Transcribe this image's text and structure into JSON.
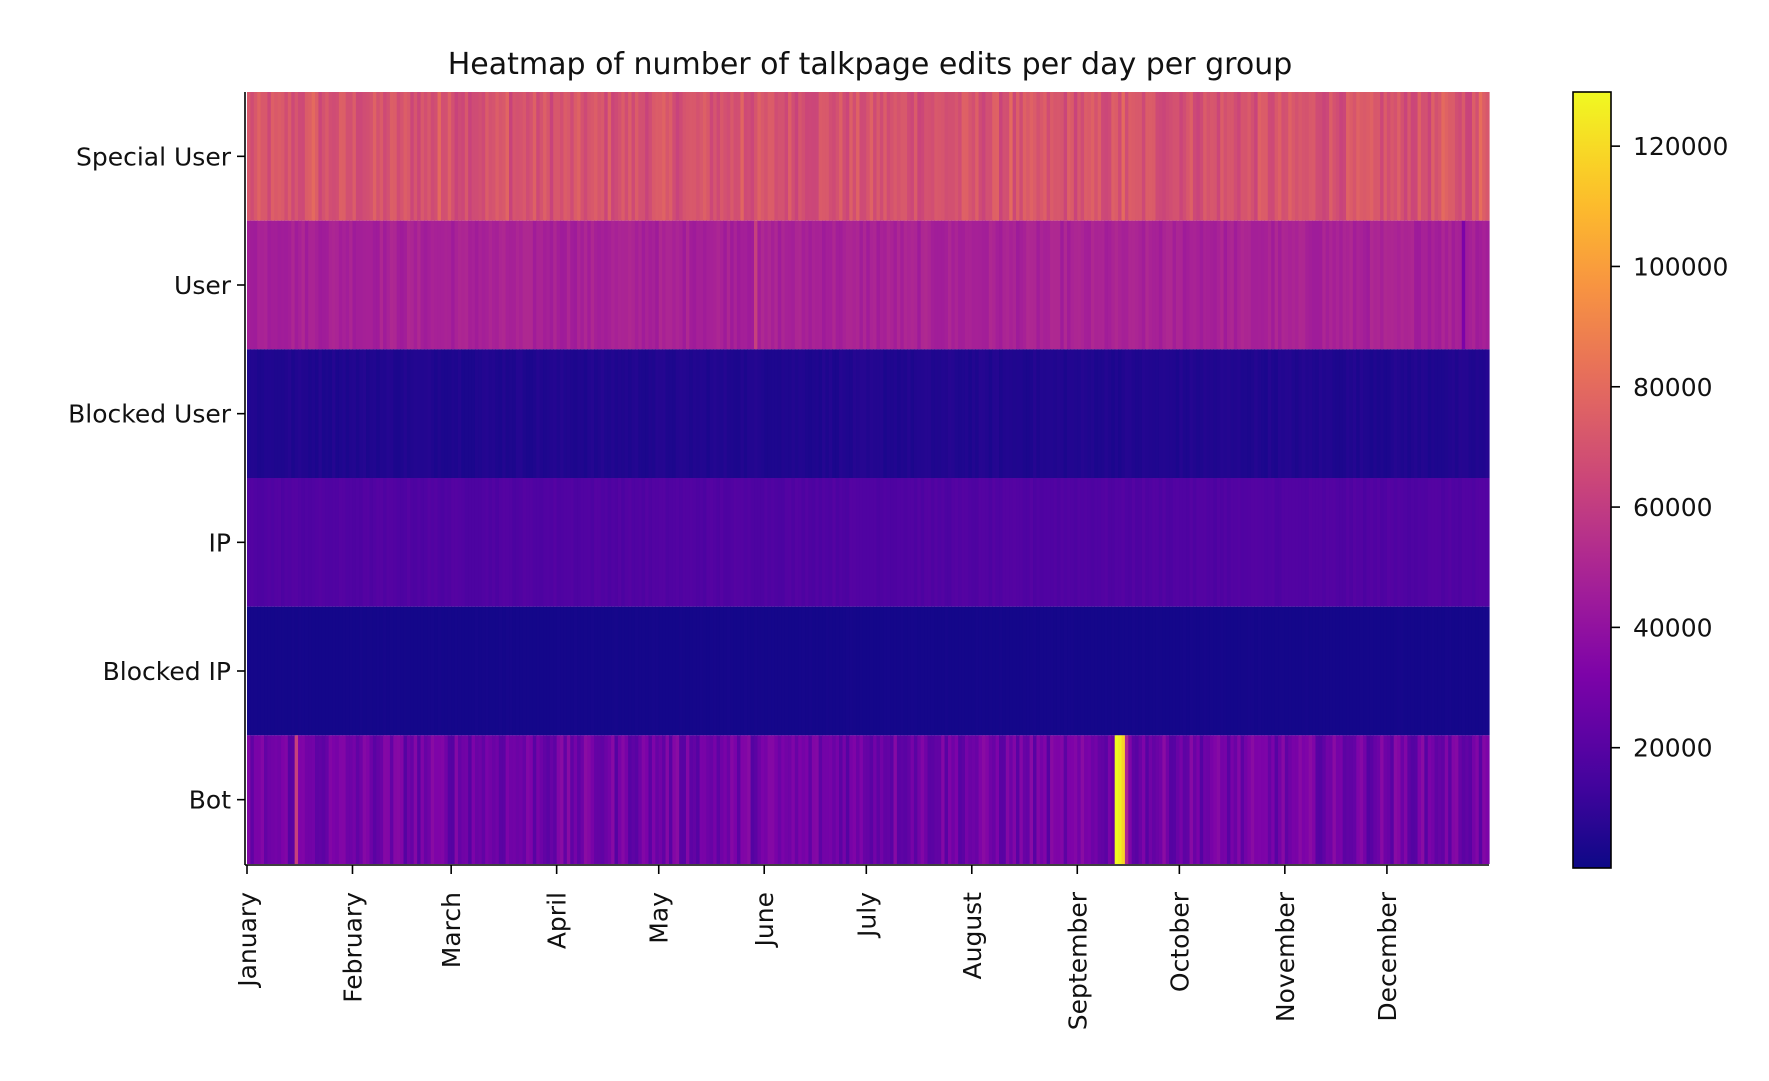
{
  "chart_data": {
    "type": "heatmap",
    "title": "Heatmap of number of talkpage edits per day per group",
    "xlabel": "",
    "ylabel": "",
    "colormap": "plasma",
    "colorbar": {
      "min": 0,
      "max": 129000,
      "ticks": [
        20000,
        40000,
        60000,
        80000,
        100000,
        120000
      ],
      "tick_labels": [
        "20000",
        "40000",
        "60000",
        "80000",
        "100000",
        "120000"
      ]
    },
    "x_range": [
      1,
      365
    ],
    "x_ticks": [
      {
        "label": "January",
        "day": 1
      },
      {
        "label": "February",
        "day": 32
      },
      {
        "label": "March",
        "day": 61
      },
      {
        "label": "April",
        "day": 92
      },
      {
        "label": "May",
        "day": 122
      },
      {
        "label": "June",
        "day": 153
      },
      {
        "label": "July",
        "day": 183
      },
      {
        "label": "August",
        "day": 214
      },
      {
        "label": "September",
        "day": 245
      },
      {
        "label": "October",
        "day": 275
      },
      {
        "label": "November",
        "day": 306
      },
      {
        "label": "December",
        "day": 336
      }
    ],
    "rows": [
      {
        "name": "Special User",
        "base": 70000,
        "variation": 7000,
        "spikes": [
          {
            "day": 20,
            "value": 80000
          },
          {
            "day": 57,
            "value": 80000
          },
          {
            "day": 77,
            "value": 78000
          },
          {
            "day": 146,
            "value": 78000
          },
          {
            "day": 225,
            "value": 80000
          },
          {
            "day": 258,
            "value": 80000
          },
          {
            "day": 352,
            "value": 80000
          },
          {
            "day": 363,
            "value": 82000
          }
        ]
      },
      {
        "name": "User",
        "base": 48000,
        "variation": 3500,
        "spikes": [
          {
            "day": 150,
            "value": 62000
          },
          {
            "day": 358,
            "value": 32000
          }
        ]
      },
      {
        "name": "Blocked User",
        "base": 5000,
        "variation": 1500,
        "spikes": []
      },
      {
        "name": "IP",
        "base": 18000,
        "variation": 1500,
        "spikes": []
      },
      {
        "name": "Blocked IP",
        "base": 2000,
        "variation": 300,
        "spikes": []
      },
      {
        "name": "Bot",
        "base": 28000,
        "variation": 9000,
        "spikes": [
          {
            "day": 15,
            "value": 62000
          },
          {
            "day": 256,
            "value": 129000
          },
          {
            "day": 257,
            "value": 126000
          },
          {
            "day": 258,
            "value": 118000
          },
          {
            "day": 259,
            "value": 50000
          }
        ]
      }
    ]
  }
}
